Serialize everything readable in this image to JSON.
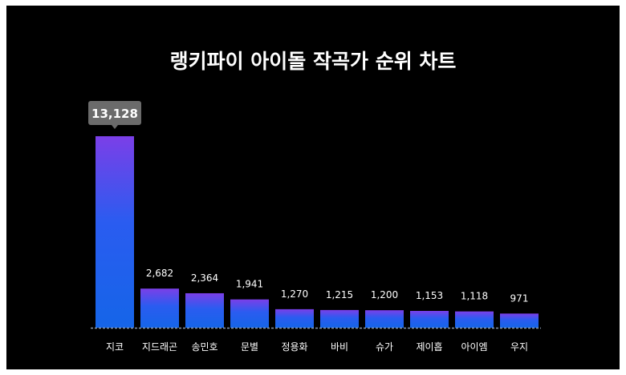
{
  "chart_data": {
    "type": "bar",
    "title": "랭키파이 아이돌 작곡가 순위 차트",
    "categories": [
      "지코",
      "지드래곤",
      "송민호",
      "문별",
      "정용화",
      "바비",
      "슈가",
      "제이홉",
      "아이엠",
      "우지"
    ],
    "values": [
      13128,
      2682,
      2364,
      1941,
      1270,
      1215,
      1200,
      1153,
      1118,
      971
    ],
    "value_labels": [
      "13,128",
      "2,682",
      "2,364",
      "1,941",
      "1,270",
      "1,215",
      "1,200",
      "1,153",
      "1,118",
      "971"
    ],
    "highlight_index": 0,
    "ylim": [
      0,
      13128
    ],
    "grid": false,
    "colors": {
      "bar_top": "#7b3fe8",
      "bar_bottom": "#1565e8",
      "tooltip_bg": "#6b6b6b",
      "text": "#ffffff"
    }
  }
}
